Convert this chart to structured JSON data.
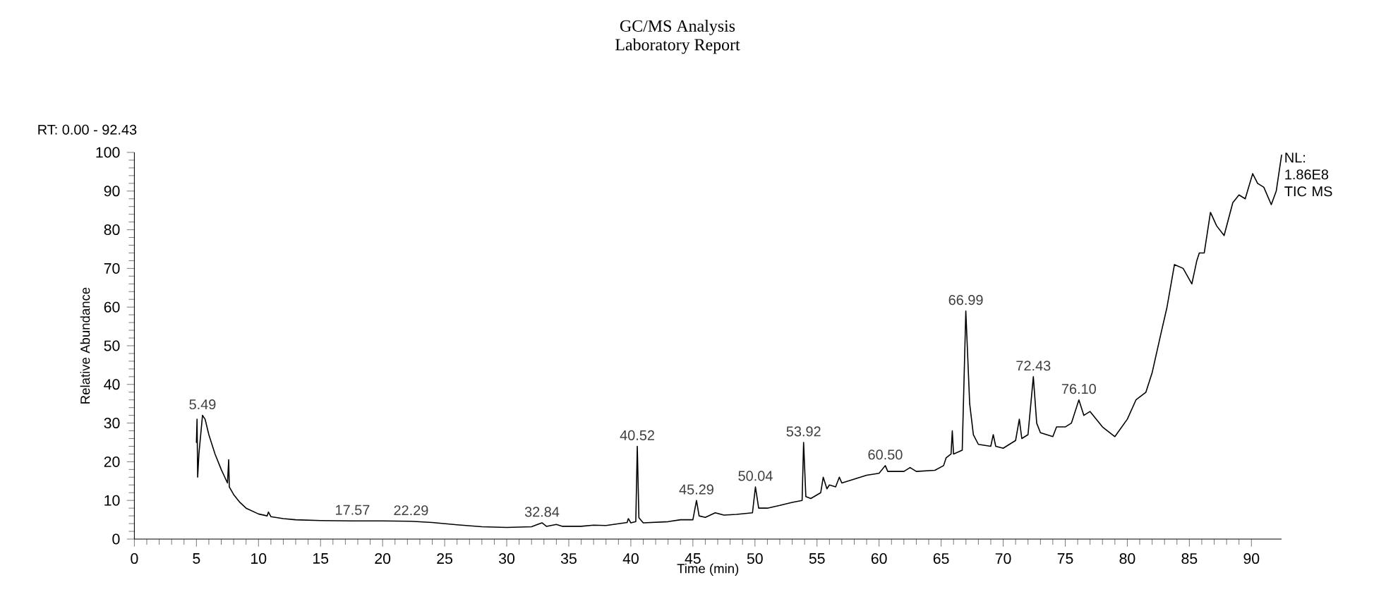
{
  "chart_data": {
    "type": "line",
    "title": "GC/MS Analysis",
    "subtitle": "Laboratory Report",
    "xlabel": "Time (min)",
    "ylabel": "Relative Abundance",
    "xlim": [
      0,
      92.43
    ],
    "ylim": [
      0,
      100
    ],
    "xticks": [
      0,
      5,
      10,
      15,
      20,
      25,
      30,
      35,
      40,
      45,
      50,
      55,
      60,
      65,
      70,
      75,
      80,
      85,
      90
    ],
    "yticks": [
      0,
      10,
      20,
      30,
      40,
      50,
      60,
      70,
      80,
      90,
      100
    ],
    "color": "#000000",
    "x": [
      5.0,
      5.05,
      5.1,
      5.2,
      5.49,
      5.7,
      6.0,
      6.5,
      7.0,
      7.5,
      7.6,
      7.65,
      8,
      8.5,
      9,
      10,
      10.7,
      10.8,
      11,
      12,
      13,
      15,
      17.57,
      20,
      22.29,
      24,
      26,
      28,
      30,
      32,
      32.84,
      33.2,
      34,
      34.5,
      36,
      37,
      38,
      39.7,
      39.8,
      40.0,
      40.4,
      40.52,
      40.65,
      41,
      43,
      44,
      45,
      45.29,
      45.5,
      46,
      46.8,
      47.5,
      48.5,
      49.8,
      50.04,
      50.3,
      51,
      52,
      53,
      53.8,
      53.92,
      54.1,
      54.5,
      55.3,
      55.5,
      55.8,
      56.0,
      56.5,
      56.8,
      57,
      58,
      59,
      60,
      60.5,
      60.7,
      62,
      62.5,
      63,
      64.5,
      65.2,
      65.4,
      65.8,
      65.9,
      66,
      66.7,
      66.99,
      67.3,
      67.6,
      68,
      69,
      69.2,
      69.4,
      70,
      71,
      71.3,
      71.5,
      72,
      72.43,
      72.7,
      73,
      74,
      74.3,
      75,
      75.5,
      76.1,
      76.5,
      77,
      78,
      79,
      80,
      80.7,
      81.5,
      82,
      82.7,
      83.2,
      83.8,
      84.5,
      85.2,
      85.6,
      85.8,
      86.2,
      86.7,
      87.2,
      87.8,
      88.5,
      89,
      89.5,
      90.1,
      90.5,
      91,
      91.6,
      92,
      92.43
    ],
    "values": [
      25,
      31,
      16,
      22,
      32,
      31,
      27,
      22,
      18,
      14.5,
      20.5,
      13.5,
      11.5,
      9.5,
      8,
      6.5,
      6,
      7,
      5.8,
      5.3,
      5,
      4.8,
      4.7,
      4.7,
      4.6,
      4.3,
      3.7,
      3.2,
      3.0,
      3.2,
      4.2,
      3.3,
      3.8,
      3.3,
      3.3,
      3.6,
      3.5,
      4.3,
      5.3,
      4.2,
      4.5,
      24,
      5.5,
      4.2,
      4.5,
      5,
      5,
      10,
      6,
      5.6,
      6.8,
      6.2,
      6.4,
      6.8,
      13.5,
      8,
      8,
      8.7,
      9.5,
      10,
      25,
      11,
      10.5,
      12,
      16,
      13,
      14,
      13.5,
      16,
      14.5,
      15.5,
      16.5,
      17,
      19,
      17.5,
      17.5,
      18.5,
      17.5,
      17.8,
      19,
      21,
      22,
      28,
      22,
      23,
      59,
      35,
      27,
      24.5,
      24,
      27,
      24,
      23.5,
      25.5,
      31,
      26,
      27,
      42,
      30,
      27.5,
      26.5,
      29,
      29,
      30,
      36,
      32,
      33,
      29,
      26.5,
      31,
      36,
      38,
      43,
      53,
      60,
      71,
      70,
      66,
      72,
      74,
      74,
      84.5,
      81,
      78.5,
      87,
      89,
      88,
      94.5,
      92,
      91,
      86.5,
      90,
      99.3
    ],
    "annotations": [
      "RT: 0.00 - 92.43",
      "NL: 1.86E8 TIC MS",
      {
        "text": "5.49",
        "x": 5.49,
        "y": 32
      },
      {
        "text": "17.57",
        "x": 17.57,
        "y": 4.7
      },
      {
        "text": "22.29",
        "x": 22.29,
        "y": 4.6
      },
      {
        "text": "32.84",
        "x": 32.84,
        "y": 4.2
      },
      {
        "text": "40.52",
        "x": 40.52,
        "y": 24
      },
      {
        "text": "45.29",
        "x": 45.29,
        "y": 10
      },
      {
        "text": "50.04",
        "x": 50.04,
        "y": 13.5
      },
      {
        "text": "53.92",
        "x": 53.92,
        "y": 25
      },
      {
        "text": "60.50",
        "x": 60.5,
        "y": 19
      },
      {
        "text": "66.99",
        "x": 66.99,
        "y": 59
      },
      {
        "text": "72.43",
        "x": 72.43,
        "y": 42
      },
      {
        "text": "76.10",
        "x": 76.1,
        "y": 36
      }
    ]
  }
}
